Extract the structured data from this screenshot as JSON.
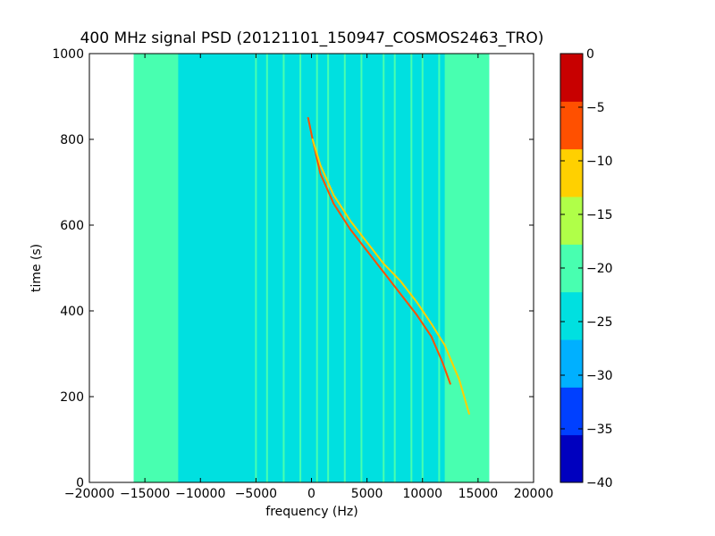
{
  "chart_data": {
    "type": "heatmap",
    "title": "400 MHz signal PSD (20121101_150947_COSMOS2463_TRO)",
    "xlabel": "frequency (Hz)",
    "ylabel": "time (s)",
    "xlim": [
      -20000,
      20000
    ],
    "ylim": [
      0,
      1000
    ],
    "x_ticks": [
      -20000,
      -15000,
      -10000,
      -5000,
      0,
      5000,
      10000,
      15000,
      20000
    ],
    "x_tick_labels": [
      "−20000",
      "−15000",
      "−10000",
      "−5000",
      "0",
      "5000",
      "10000",
      "15000",
      "20000"
    ],
    "y_ticks": [
      0,
      200,
      400,
      600,
      800,
      1000
    ],
    "y_tick_labels": [
      "0",
      "200",
      "400",
      "600",
      "800",
      "1000"
    ],
    "data_x_range": [
      -16000,
      16000
    ],
    "data_y_range": [
      0,
      1000
    ],
    "background_level": -22.5,
    "edge_level": -17.5,
    "edge_bands_hz": [
      [
        -16000,
        -12000
      ],
      [
        12000,
        16000
      ]
    ],
    "vertical_line_freqs_hz": [
      -15500,
      -14500,
      -13000,
      -5000,
      -4000,
      -2500,
      -1000,
      500,
      1500,
      3000,
      4500,
      6500,
      7500,
      9000,
      10000,
      11500
    ],
    "vertical_line_level": -17.5,
    "colorbar": {
      "levels": [
        -40,
        -35,
        -30,
        -25,
        -20,
        -15,
        -10,
        -5,
        0
      ],
      "tick_labels": [
        "0",
        "−5",
        "−10",
        "−15",
        "−20",
        "−25",
        "−30",
        "−35",
        "−40"
      ],
      "colors": [
        "#0000bf",
        "#0040ff",
        "#00b0ff",
        "#00e0e0",
        "#48ffb0",
        "#b0ff48",
        "#ffd000",
        "#ff5000",
        "#c80000"
      ]
    },
    "series": [
      {
        "level": -2.5,
        "x": [
          -300,
          100,
          800,
          2000,
          3500,
          5000,
          6500,
          8000,
          9500,
          10800,
          11800,
          12500
        ],
        "y": [
          850,
          800,
          720,
          650,
          590,
          540,
          490,
          440,
          390,
          340,
          280,
          230
        ]
      },
      {
        "level": -7.5,
        "x": [
          100,
          800,
          2000,
          3500,
          5000,
          6500,
          8000,
          9500,
          10800,
          12000,
          13300,
          14200
        ],
        "y": [
          800,
          740,
          670,
          610,
          560,
          510,
          470,
          420,
          370,
          320,
          240,
          160
        ]
      }
    ]
  }
}
